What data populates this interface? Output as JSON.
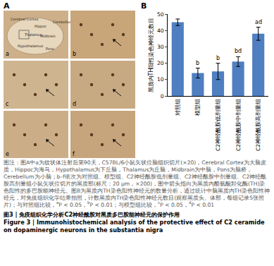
{
  "panel_a": {
    "label": "A",
    "images": [
      {
        "letter": "a",
        "regions": [
          "Cerebral Cortex",
          "Hippoc",
          "Hypothalamus",
          "Thalamus",
          "Midbrain",
          "Pons",
          "Cerebellum"
        ]
      },
      {
        "letter": "b"
      },
      {
        "letter": "c"
      },
      {
        "letter": "d"
      },
      {
        "letter": "e"
      },
      {
        "letter": "f"
      }
    ]
  },
  "chart_data": {
    "panel_label": "B",
    "type": "bar",
    "categories": [
      "对照组",
      "模型组",
      "C2神经酰胺低剂量组",
      "C2神经酰胺中剂量组",
      "C2神经酰胺高剂量组"
    ],
    "values": [
      45,
      14,
      15,
      21,
      38
    ],
    "errors": [
      2,
      3,
      5,
      3,
      4
    ],
    "color": "#4f7fc1",
    "ylabel": "黑质内TH阳性染色神经元数目",
    "ylim": [
      0,
      50
    ],
    "yticks": [
      0,
      10,
      20,
      30,
      40,
      50
    ],
    "annotations": [
      {
        "category": "模型组",
        "text": "b"
      },
      {
        "category": "C2神经酰胺低剂量组",
        "text": "b"
      },
      {
        "category": "C2神经酰胺中剂量组",
        "text": "bd"
      },
      {
        "category": "C2神经酰胺高剂量组",
        "text": "ad"
      }
    ]
  },
  "caption": [
    {
      "text": "图注：图A中a为纹状体注射后第90天，C57BL/6小鼠矢状位脑组织切片(×20)，Cerebral Cortex为大脑皮质，Hippoc为海马，Hypothalamus为下丘脑，Thalamus为丘脑，Midbrain为中脑，Pons为脑桥，Cerebellum为小脑；b–f依次为对照组、模型组、C2神经酰胺低剂量组、C2神经酰胺中剂量组、C2神经酰胺高剂量组小鼠矢状位切片的黑质部(标尺：20 μm，×200)，图中箭头指向为黑质内酪氨酸羟化酶(TH)染色阳性的多巴胺能神经元。图B为黑质内TH染色阳性神经元的数量分析，通过统计中脑黑质内TH染色阳性神经元，对免疫组织化学结果拍照，计数黑质内TH染色阳性神经元数目(观察黑质头、体部，每组记录5张照片)；与对照组比较，"
    },
    {
      "sup": "a"
    },
    {
      "text": "P < 0.05，"
    },
    {
      "sup": "b"
    },
    {
      "text": "P < 0.01；与模型组比较，"
    },
    {
      "sup": "c"
    },
    {
      "text": "P < 0.05，"
    },
    {
      "sup": "d"
    },
    {
      "text": "P < 0.01"
    }
  ],
  "figure_title_zh": "图3 | 免疫组织化学分析C2神经酰胺对黑质多巴胺能神经元的保护作用",
  "figure_title_en": "Figure 3 | Immunohistochemical analysis of the protective effect of C2 ceramide on dopaminergic neurons in the substantia nigra"
}
